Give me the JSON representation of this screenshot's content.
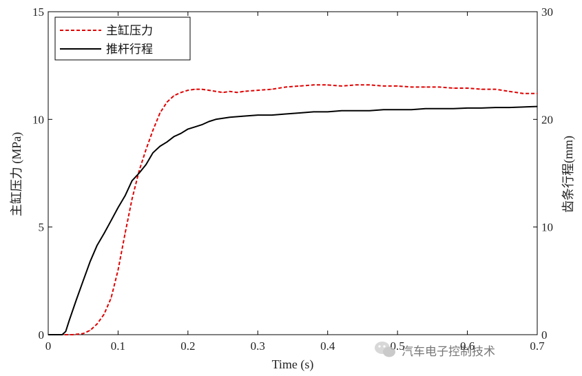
{
  "chart_data": {
    "type": "line",
    "xlabel": "Time (s)",
    "ylabel_left": "主缸压力 (MPa)",
    "ylabel_right": "齿条行程(mm)",
    "xlim": [
      0,
      0.7
    ],
    "ylim_left": [
      0,
      15
    ],
    "ylim_right": [
      0,
      30
    ],
    "x_ticks": [
      "0",
      "0.1",
      "0.2",
      "0.3",
      "0.4",
      "0.5",
      "0.6",
      "0.7"
    ],
    "y_ticks_left": [
      "0",
      "5",
      "10",
      "15"
    ],
    "y_ticks_right": [
      "0",
      "10",
      "20",
      "30"
    ],
    "legend_position": "top-left",
    "grid": false,
    "series": [
      {
        "name": "主缸压力",
        "axis": "left",
        "color": "#e00000",
        "style": "dashed",
        "x": [
          0,
          0.02,
          0.035,
          0.05,
          0.06,
          0.07,
          0.08,
          0.09,
          0.1,
          0.11,
          0.12,
          0.13,
          0.14,
          0.15,
          0.16,
          0.17,
          0.18,
          0.19,
          0.2,
          0.21,
          0.22,
          0.23,
          0.24,
          0.25,
          0.26,
          0.27,
          0.28,
          0.3,
          0.32,
          0.34,
          0.36,
          0.38,
          0.4,
          0.42,
          0.44,
          0.46,
          0.48,
          0.5,
          0.52,
          0.54,
          0.56,
          0.58,
          0.6,
          0.62,
          0.64,
          0.66,
          0.68,
          0.7
        ],
        "values": [
          0,
          0,
          0,
          0.05,
          0.2,
          0.5,
          0.95,
          1.7,
          3.0,
          4.7,
          6.3,
          7.6,
          8.6,
          9.5,
          10.3,
          10.8,
          11.1,
          11.25,
          11.35,
          11.4,
          11.4,
          11.35,
          11.3,
          11.25,
          11.3,
          11.25,
          11.3,
          11.35,
          11.4,
          11.5,
          11.55,
          11.6,
          11.6,
          11.55,
          11.6,
          11.6,
          11.55,
          11.55,
          11.5,
          11.5,
          11.5,
          11.45,
          11.45,
          11.4,
          11.4,
          11.3,
          11.2,
          11.2
        ]
      },
      {
        "name": "推杆行程",
        "axis": "right",
        "color": "#000000",
        "style": "solid",
        "x": [
          0,
          0.02,
          0.025,
          0.03,
          0.04,
          0.05,
          0.06,
          0.07,
          0.08,
          0.09,
          0.1,
          0.11,
          0.12,
          0.13,
          0.14,
          0.15,
          0.16,
          0.17,
          0.18,
          0.19,
          0.2,
          0.21,
          0.22,
          0.23,
          0.24,
          0.25,
          0.26,
          0.28,
          0.3,
          0.32,
          0.34,
          0.36,
          0.38,
          0.4,
          0.42,
          0.44,
          0.46,
          0.48,
          0.5,
          0.52,
          0.54,
          0.56,
          0.58,
          0.6,
          0.62,
          0.64,
          0.66,
          0.68,
          0.7
        ],
        "values": [
          0,
          0,
          0.3,
          1.3,
          3.2,
          5.0,
          6.8,
          8.3,
          9.4,
          10.6,
          11.8,
          12.9,
          14.3,
          15.0,
          15.8,
          16.9,
          17.5,
          17.9,
          18.4,
          18.7,
          19.1,
          19.3,
          19.5,
          19.8,
          20.0,
          20.1,
          20.2,
          20.3,
          20.4,
          20.4,
          20.5,
          20.6,
          20.7,
          20.7,
          20.8,
          20.8,
          20.8,
          20.9,
          20.9,
          20.9,
          21.0,
          21.0,
          21.0,
          21.05,
          21.05,
          21.1,
          21.1,
          21.15,
          21.2
        ]
      }
    ]
  },
  "watermark": {
    "icon": "wechat-icon",
    "text": "汽车电子控制技术"
  }
}
